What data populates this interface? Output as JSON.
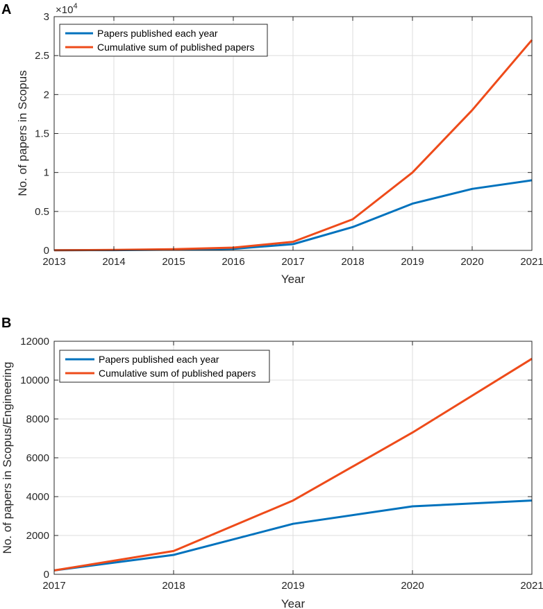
{
  "chart_data": [
    {
      "panel": "A",
      "type": "line",
      "title": "",
      "xlabel": "Year",
      "ylabel": "No. of papers in Scopus",
      "y_exponent_label": "×10",
      "y_exponent_power": "4",
      "x": [
        2013,
        2014,
        2015,
        2016,
        2017,
        2018,
        2019,
        2020,
        2021
      ],
      "x_tick_labels": [
        "2013",
        "2014",
        "2015",
        "2016",
        "2017",
        "2018",
        "2019",
        "2020",
        "2021"
      ],
      "xlim": [
        2013,
        2021
      ],
      "ylim": [
        0,
        30000
      ],
      "y_ticks": [
        0,
        5000,
        10000,
        15000,
        20000,
        25000,
        30000
      ],
      "y_tick_labels": [
        "0",
        "0.5",
        "1",
        "1.5",
        "2",
        "2.5",
        "3"
      ],
      "grid": true,
      "legend_position": "top-left",
      "series": [
        {
          "name": "Papers published each year",
          "color": "#0072BD",
          "values": [
            20,
            40,
            100,
            200,
            800,
            3000,
            6000,
            7900,
            9000
          ]
        },
        {
          "name": "Cumulative sum of published papers",
          "color": "#EE4B1A",
          "values": [
            20,
            60,
            160,
            360,
            1100,
            4000,
            10000,
            18000,
            27000
          ]
        }
      ]
    },
    {
      "panel": "B",
      "type": "line",
      "title": "",
      "xlabel": "Year",
      "ylabel": "No. of papers in Scopus/Engineering",
      "x": [
        2017,
        2018,
        2019,
        2020,
        2021
      ],
      "x_tick_labels": [
        "2017",
        "2018",
        "2019",
        "2020",
        "2021"
      ],
      "xlim": [
        2017,
        2021
      ],
      "ylim": [
        0,
        12000
      ],
      "y_ticks": [
        0,
        2000,
        4000,
        6000,
        8000,
        10000,
        12000
      ],
      "y_tick_labels": [
        "0",
        "2000",
        "4000",
        "6000",
        "8000",
        "10000",
        "12000"
      ],
      "grid": true,
      "legend_position": "top-left",
      "series": [
        {
          "name": "Papers published each year",
          "color": "#0072BD",
          "values": [
            200,
            1000,
            2600,
            3500,
            3800
          ]
        },
        {
          "name": "Cumulative sum of published papers",
          "color": "#EE4B1A",
          "values": [
            200,
            1200,
            3800,
            7300,
            11100
          ]
        }
      ]
    }
  ]
}
